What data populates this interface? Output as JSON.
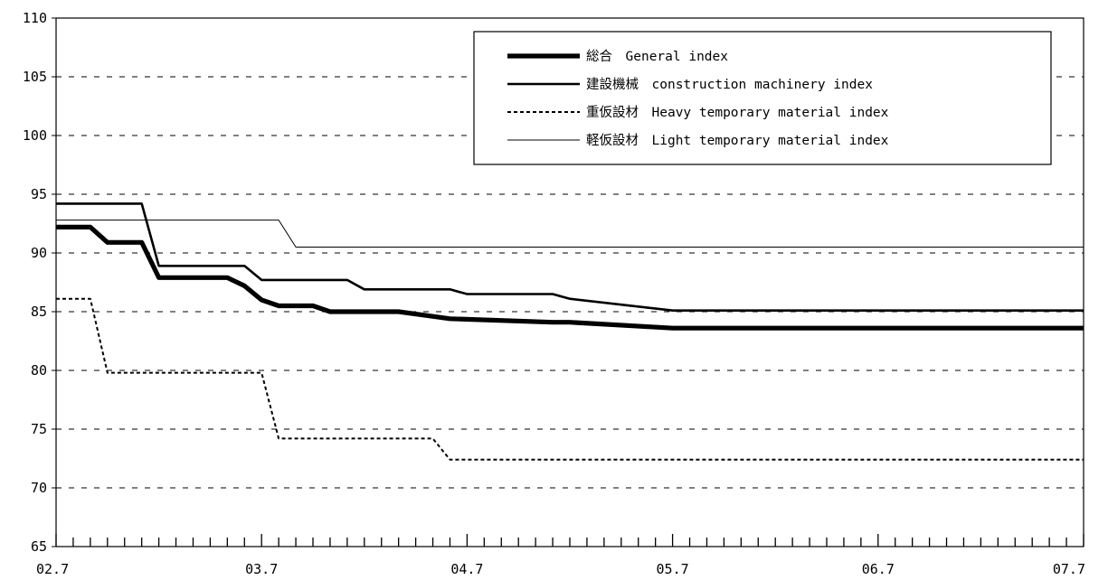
{
  "chart_data": {
    "type": "line",
    "title": "",
    "xlabel": "",
    "ylabel": "",
    "ylim": [
      65,
      110
    ],
    "yticks": [
      65,
      70,
      75,
      80,
      85,
      90,
      95,
      100,
      105,
      110
    ],
    "xlim": [
      0,
      60
    ],
    "xtick_labels": [
      "02.7",
      "03.7",
      "04.7",
      "05.7",
      "06.7",
      "07.7"
    ],
    "grid": "dashed horizontal",
    "legend_position": "top-right",
    "series": [
      {
        "name": "総合　General index",
        "style": "heavy",
        "x": [
          0,
          2,
          3,
          5,
          6,
          10,
          11,
          12,
          13,
          15,
          16,
          18,
          20,
          22,
          23,
          29,
          30,
          36,
          60
        ],
        "y": [
          92.2,
          92.2,
          90.9,
          90.9,
          87.9,
          87.9,
          87.2,
          86.0,
          85.5,
          85.5,
          85.0,
          85.0,
          85.0,
          84.6,
          84.4,
          84.1,
          84.1,
          83.6,
          83.6
        ]
      },
      {
        "name": "建設機械　construction machinery index",
        "style": "solid",
        "x": [
          0,
          5,
          6,
          11,
          12,
          17,
          18,
          23,
          24,
          29,
          30,
          36,
          60
        ],
        "y": [
          94.2,
          94.2,
          88.9,
          88.9,
          87.7,
          87.7,
          86.9,
          86.9,
          86.5,
          86.5,
          86.1,
          85.1,
          85.1
        ]
      },
      {
        "name": "重仮設材　Heavy temporary material index",
        "style": "dotted",
        "x": [
          0,
          2,
          3,
          12,
          13,
          22,
          23,
          60
        ],
        "y": [
          86.1,
          86.1,
          79.8,
          79.8,
          74.2,
          74.2,
          72.4,
          72.4
        ]
      },
      {
        "name": "軽仮設材　Light temporary material index",
        "style": "thin",
        "x": [
          0,
          13,
          14,
          60
        ],
        "y": [
          92.8,
          92.8,
          90.5,
          90.5
        ]
      }
    ]
  }
}
